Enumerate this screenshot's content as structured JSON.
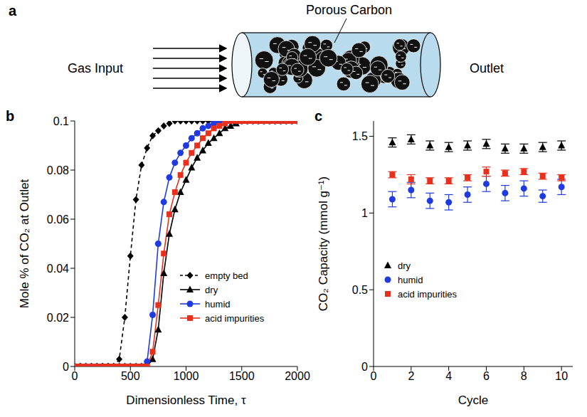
{
  "diagram": {
    "panel": "a",
    "labels": {
      "input": "Gas Input",
      "material": "Porous Carbon",
      "output": "Outlet"
    }
  },
  "chart_data": [
    {
      "panel": "b",
      "type": "line",
      "x_label": "Dimensionless Time, τ",
      "y_label": "Mole % of CO₂ at Outlet",
      "x": [
        0,
        50,
        100,
        150,
        200,
        250,
        300,
        350,
        400,
        450,
        500,
        550,
        600,
        650,
        700,
        750,
        800,
        850,
        900,
        950,
        1000,
        1050,
        1100,
        1150,
        1200,
        1250,
        1300,
        1350,
        1400,
        1450,
        1500,
        1550,
        1600,
        1650,
        1700,
        1750,
        1800,
        1850,
        1900,
        1950,
        2000
      ],
      "xlim": [
        0,
        2000
      ],
      "xticks": [
        0,
        500,
        1000,
        1500,
        2000
      ],
      "ylim": [
        0,
        0.1
      ],
      "yticks": [
        0,
        0.02,
        0.04,
        0.06,
        0.08,
        0.1
      ],
      "legend": "lower right",
      "series": [
        {
          "name": "empty bed",
          "color": "#000000",
          "marker": "diamond",
          "line_style": "dashed",
          "values": [
            0,
            0,
            0,
            0,
            0,
            0,
            0,
            0,
            0.003,
            0.02,
            0.045,
            0.068,
            0.082,
            0.089,
            0.094,
            0.096,
            0.098,
            0.099,
            0.1,
            0.1,
            0.1,
            0.1,
            0.1,
            0.1,
            0.1,
            0.1,
            0.1,
            0.1,
            0.1,
            0.1,
            0.1,
            0.1,
            0.1,
            0.1,
            0.1,
            0.1,
            0.1,
            0.1,
            0.1,
            0.1,
            0.1
          ]
        },
        {
          "name": "dry",
          "color": "#000000",
          "marker": "triangle",
          "line_style": "solid",
          "values": [
            0,
            0,
            0,
            0,
            0,
            0,
            0,
            0,
            0,
            0,
            0,
            0,
            0,
            0,
            0.003,
            0.015,
            0.038,
            0.054,
            0.064,
            0.071,
            0.076,
            0.081,
            0.085,
            0.088,
            0.091,
            0.093,
            0.095,
            0.097,
            0.098,
            0.099,
            0.1,
            0.1,
            0.1,
            0.1,
            0.1,
            0.1,
            0.1,
            0.1,
            0.1,
            0.1,
            0.1
          ]
        },
        {
          "name": "humid",
          "color": "#1f3be0",
          "marker": "circle",
          "line_style": "solid",
          "values": [
            0,
            0,
            0,
            0,
            0,
            0,
            0,
            0,
            0,
            0,
            0,
            0,
            0,
            0.002,
            0.021,
            0.05,
            0.067,
            0.077,
            0.083,
            0.087,
            0.09,
            0.093,
            0.095,
            0.097,
            0.098,
            0.099,
            0.1,
            0.1,
            0.1,
            0.1,
            0.1,
            0.1,
            0.1,
            0.1,
            0.1,
            0.1,
            0.1,
            0.1,
            0.1,
            0.1,
            0.1
          ]
        },
        {
          "name": "acid impurities",
          "color": "#e8301c",
          "marker": "square",
          "line_style": "solid",
          "values": [
            0,
            0,
            0,
            0,
            0,
            0,
            0,
            0,
            0,
            0,
            0,
            0,
            0,
            0,
            0.006,
            0.025,
            0.046,
            0.062,
            0.071,
            0.078,
            0.083,
            0.087,
            0.09,
            0.093,
            0.095,
            0.097,
            0.098,
            0.099,
            0.1,
            0.1,
            0.1,
            0.1,
            0.1,
            0.1,
            0.1,
            0.1,
            0.1,
            0.1,
            0.1,
            0.1,
            0.1
          ]
        }
      ]
    },
    {
      "panel": "c",
      "type": "scatter",
      "x_label": "Cycle",
      "y_label": "CO₂ Capacity (mmol g⁻¹)",
      "x": [
        1,
        2,
        3,
        4,
        5,
        6,
        7,
        8,
        9,
        10
      ],
      "xlim": [
        0,
        10.6
      ],
      "xticks": [
        0,
        2,
        4,
        6,
        8,
        10
      ],
      "ylim": [
        0,
        1.6
      ],
      "yticks": [
        0,
        0.5,
        1,
        1.5
      ],
      "legend": "lower left",
      "series": [
        {
          "name": "dry",
          "color": "#000000",
          "marker": "triangle",
          "values": [
            1.46,
            1.48,
            1.44,
            1.43,
            1.44,
            1.45,
            1.42,
            1.42,
            1.43,
            1.44
          ],
          "errors": [
            0.03,
            0.03,
            0.03,
            0.03,
            0.03,
            0.03,
            0.03,
            0.03,
            0.03,
            0.03
          ]
        },
        {
          "name": "humid",
          "color": "#1f3be0",
          "marker": "circle",
          "values": [
            1.09,
            1.15,
            1.08,
            1.07,
            1.12,
            1.19,
            1.13,
            1.16,
            1.11,
            1.17
          ],
          "errors": [
            0.05,
            0.05,
            0.05,
            0.05,
            0.05,
            0.05,
            0.05,
            0.05,
            0.04,
            0.05
          ]
        },
        {
          "name": "acid impurities",
          "color": "#e8301c",
          "marker": "square",
          "values": [
            1.25,
            1.22,
            1.21,
            1.21,
            1.23,
            1.27,
            1.26,
            1.27,
            1.24,
            1.23
          ],
          "errors": [
            0.02,
            0.03,
            0.02,
            0.02,
            0.02,
            0.03,
            0.02,
            0.02,
            0.02,
            0.02
          ]
        }
      ]
    }
  ]
}
